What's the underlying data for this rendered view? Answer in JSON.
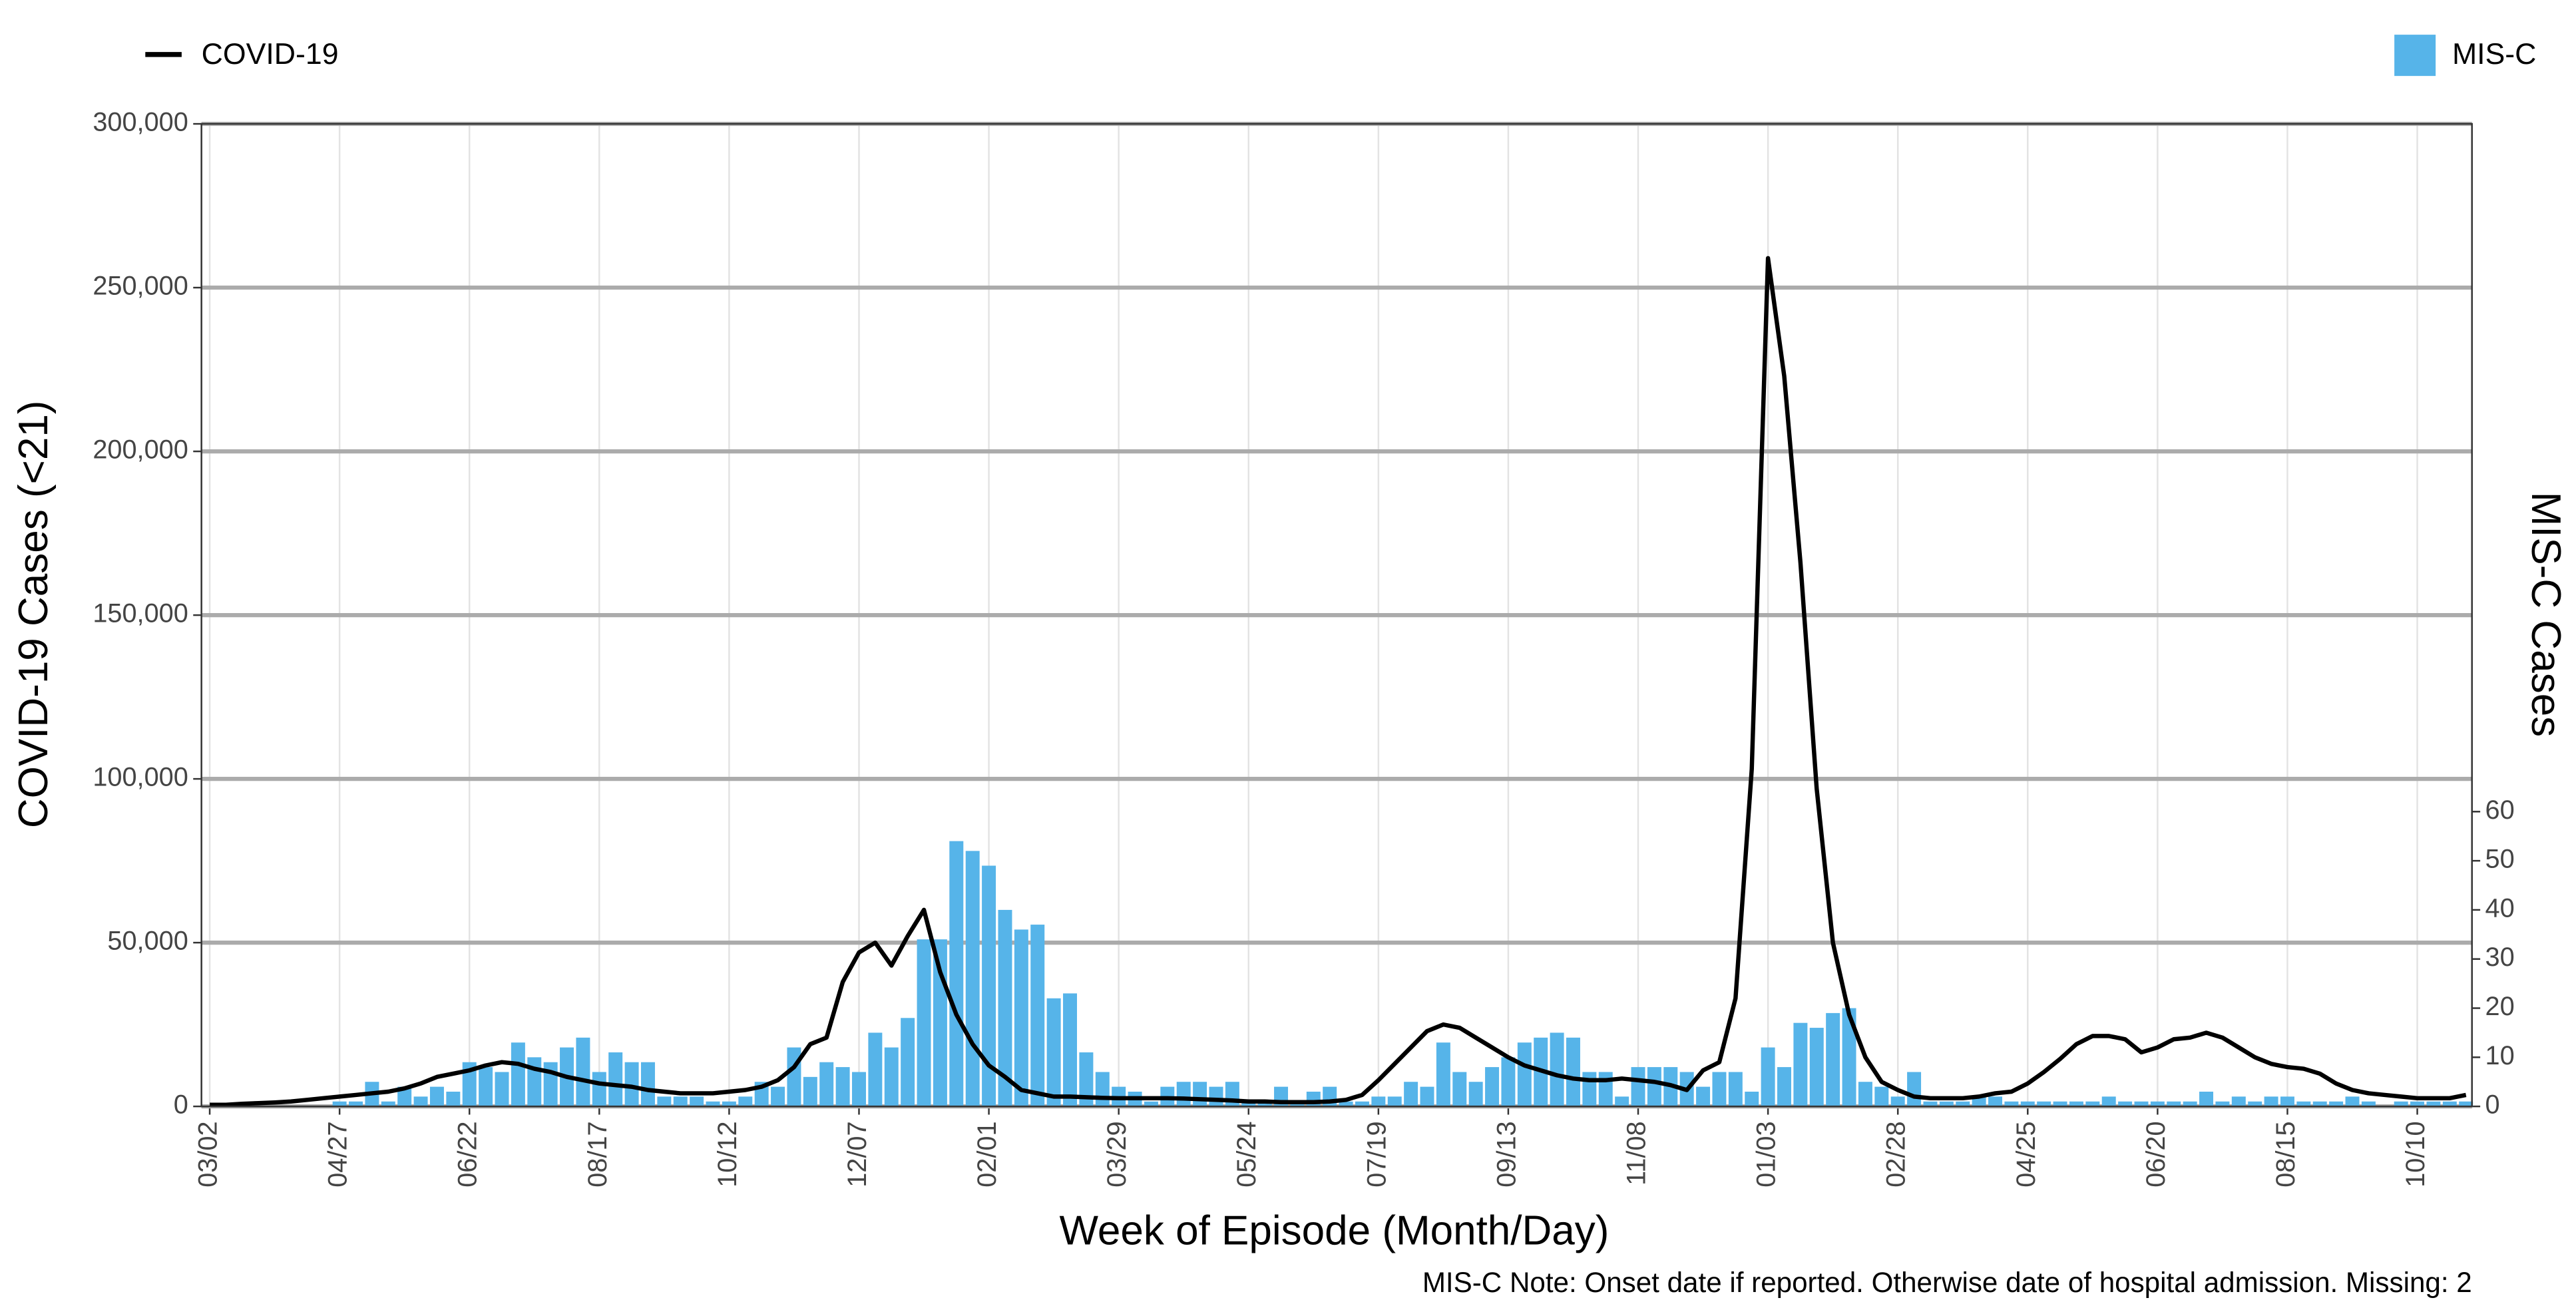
{
  "chart_data": {
    "type": "combo",
    "xlabel": "Week of Episode (Month/Day)",
    "ylabel": "COVID-19 Cases (<21)",
    "y2label": "MIS-C Cases",
    "note": "MIS-C Note: Onset date if reported. Otherwise date of hospital admission. Missing: 2",
    "grid": true,
    "categories": [
      "03/02",
      null,
      null,
      null,
      null,
      null,
      null,
      null,
      "04/27",
      null,
      null,
      null,
      null,
      null,
      null,
      null,
      "06/22",
      null,
      null,
      null,
      null,
      null,
      null,
      null,
      "08/17",
      null,
      null,
      null,
      null,
      null,
      null,
      null,
      "10/12",
      null,
      null,
      null,
      null,
      null,
      null,
      null,
      "12/07",
      null,
      null,
      null,
      null,
      null,
      null,
      null,
      "02/01",
      null,
      null,
      null,
      null,
      null,
      null,
      null,
      "03/29",
      null,
      null,
      null,
      null,
      null,
      null,
      null,
      "05/24",
      null,
      null,
      null,
      null,
      null,
      null,
      null,
      "07/19",
      null,
      null,
      null,
      null,
      null,
      null,
      null,
      "09/13",
      null,
      null,
      null,
      null,
      null,
      null,
      null,
      "11/08",
      null,
      null,
      null,
      null,
      null,
      null,
      null,
      "01/03",
      null,
      null,
      null,
      null,
      null,
      null,
      null,
      "02/28",
      null,
      null,
      null,
      null,
      null,
      null,
      null,
      "04/25",
      null,
      null,
      null,
      null,
      null,
      null,
      null,
      "06/20",
      null,
      null,
      null,
      null,
      null,
      null,
      null,
      "08/15",
      null,
      null,
      null,
      null,
      null,
      null,
      null,
      "10/10",
      null,
      null,
      null
    ],
    "series": [
      {
        "name": "COVID-19",
        "type": "line",
        "color": "#000000",
        "values": [
          500,
          500,
          800,
          1000,
          1200,
          1500,
          2000,
          2500,
          3000,
          3500,
          4000,
          4500,
          5500,
          7000,
          9000,
          10000,
          11000,
          12500,
          13500,
          13000,
          11500,
          10500,
          9000,
          8000,
          7000,
          6500,
          6000,
          5000,
          4500,
          4000,
          4000,
          4000,
          4500,
          5000,
          6000,
          8000,
          12000,
          19000,
          21000,
          38000,
          47000,
          50000,
          43000,
          52000,
          60000,
          41000,
          28000,
          19000,
          12500,
          9000,
          5000,
          4000,
          3000,
          3000,
          2800,
          2600,
          2500,
          2500,
          2500,
          2500,
          2400,
          2200,
          2000,
          1800,
          1500,
          1500,
          1300,
          1300,
          1300,
          1500,
          2000,
          3500,
          8000,
          13000,
          18000,
          23000,
          25000,
          24000,
          21000,
          18000,
          15000,
          12500,
          11000,
          9500,
          8500,
          8000,
          8000,
          8500,
          8000,
          7500,
          6500,
          5000,
          11000,
          13500,
          33000,
          103000,
          259000,
          223000,
          166000,
          97000,
          50000,
          28000,
          15000,
          7500,
          5000,
          3000,
          2500,
          2500,
          2500,
          3000,
          4000,
          4500,
          7000,
          10500,
          14500,
          19000,
          21500,
          21500,
          20500,
          16500,
          18000,
          20500,
          21000,
          22500,
          21000,
          18000,
          15000,
          13000,
          12000,
          11500,
          10000,
          7000,
          5000,
          4000,
          3500,
          3000,
          2500,
          2500,
          2500,
          3500
        ]
      },
      {
        "name": "MIS-C",
        "type": "bar",
        "axis": "y2",
        "color": "#56b4e9",
        "values": [
          0,
          0,
          0,
          0,
          0,
          0,
          0,
          0,
          1,
          1,
          5,
          1,
          4,
          2,
          4,
          3,
          9,
          8,
          7,
          13,
          10,
          9,
          12,
          14,
          7,
          11,
          9,
          9,
          2,
          2,
          2,
          1,
          1,
          2,
          5,
          4,
          12,
          6,
          9,
          8,
          7,
          15,
          12,
          18,
          34,
          34,
          54,
          52,
          49,
          40,
          36,
          37,
          22,
          23,
          11,
          7,
          4,
          3,
          1,
          4,
          5,
          5,
          4,
          5,
          1,
          1,
          4,
          1,
          3,
          4,
          1,
          1,
          2,
          2,
          5,
          4,
          13,
          7,
          5,
          8,
          10,
          13,
          14,
          15,
          14,
          7,
          7,
          2,
          8,
          8,
          8,
          7,
          4,
          7,
          7,
          3,
          12,
          8,
          17,
          16,
          19,
          20,
          5,
          4,
          2,
          7,
          1,
          1,
          1,
          2,
          2,
          1,
          1,
          1,
          1,
          1,
          1,
          2,
          1,
          1,
          1,
          1,
          1,
          3,
          1,
          2,
          1,
          2,
          2,
          1,
          1,
          1,
          2,
          1,
          0,
          1,
          1,
          1,
          1,
          1
        ]
      }
    ],
    "ylim": [
      0,
      300000
    ],
    "yticks": [
      0,
      {
        "value": 50000,
        "label": "50,000"
      },
      {
        "value": 100000,
        "label": "100,000"
      },
      {
        "value": 150000,
        "label": "150,000"
      },
      {
        "value": 200000,
        "label": "200,000"
      },
      {
        "value": 250000,
        "label": "250,000"
      },
      {
        "value": 300000,
        "label": "300,000"
      }
    ],
    "y2lim": [
      0,
      200
    ],
    "y2ticks": [
      0,
      10,
      20,
      30,
      40,
      50,
      60
    ]
  }
}
